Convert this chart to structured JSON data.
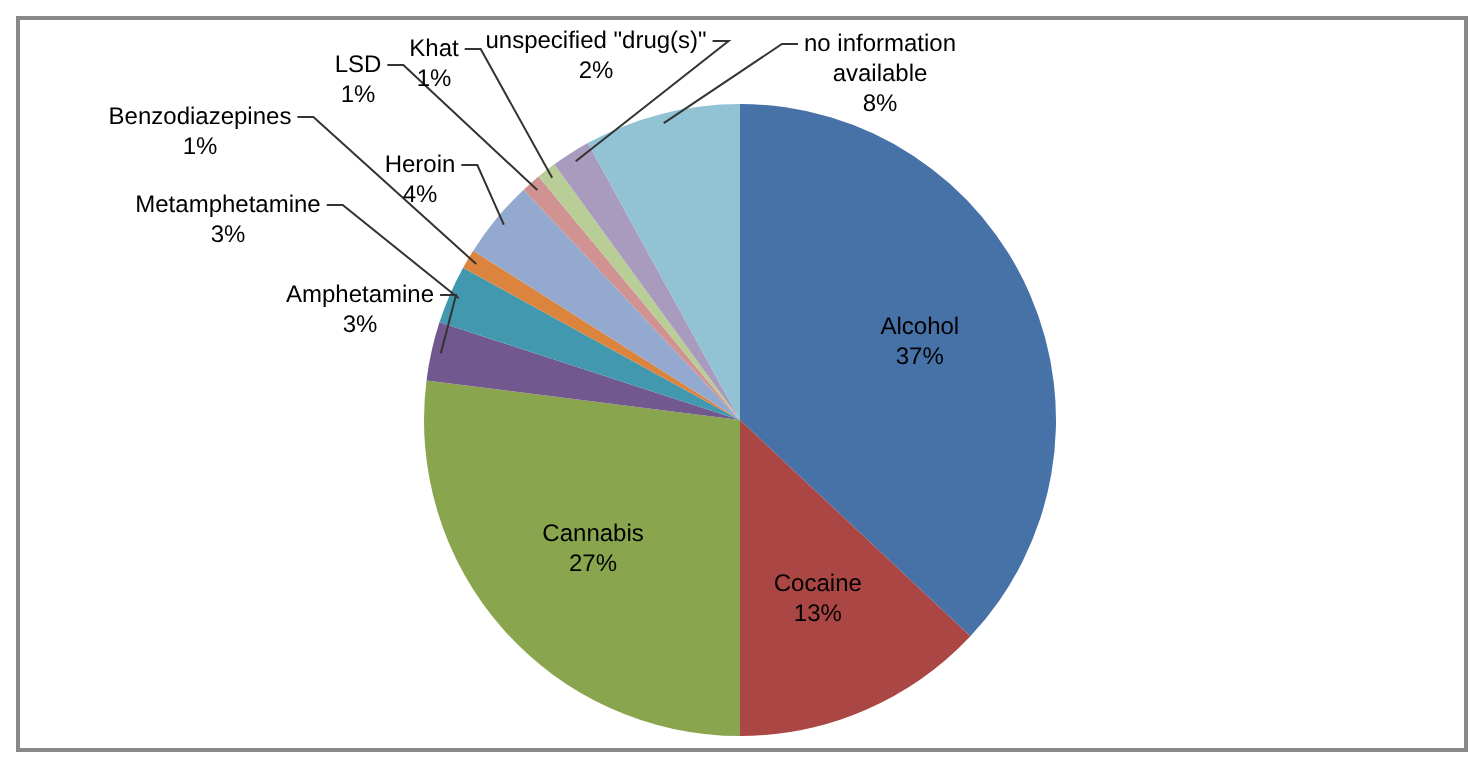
{
  "chart_data": {
    "type": "pie",
    "categories": [
      "Alcohol",
      "Cocaine",
      "Cannabis",
      "Amphetamine",
      "Metamphetamine",
      "Benzodiazepines",
      "Heroin",
      "LSD",
      "Khat",
      "unspecified \"drug(s)\"",
      "no information available"
    ],
    "values": [
      37,
      13,
      27,
      3,
      3,
      1,
      4,
      1,
      1,
      2,
      8
    ],
    "value_labels": [
      "37%",
      "13%",
      "27%",
      "3%",
      "3%",
      "1%",
      "4%",
      "1%",
      "1%",
      "2%",
      "8%"
    ],
    "colors": [
      "#4672a8",
      "#aa4644",
      "#89a54e",
      "#71588f",
      "#4198af",
      "#db843d",
      "#93a9cf",
      "#d19392",
      "#b9cd96",
      "#a99bbd",
      "#91c3d5"
    ],
    "legend": false
  }
}
